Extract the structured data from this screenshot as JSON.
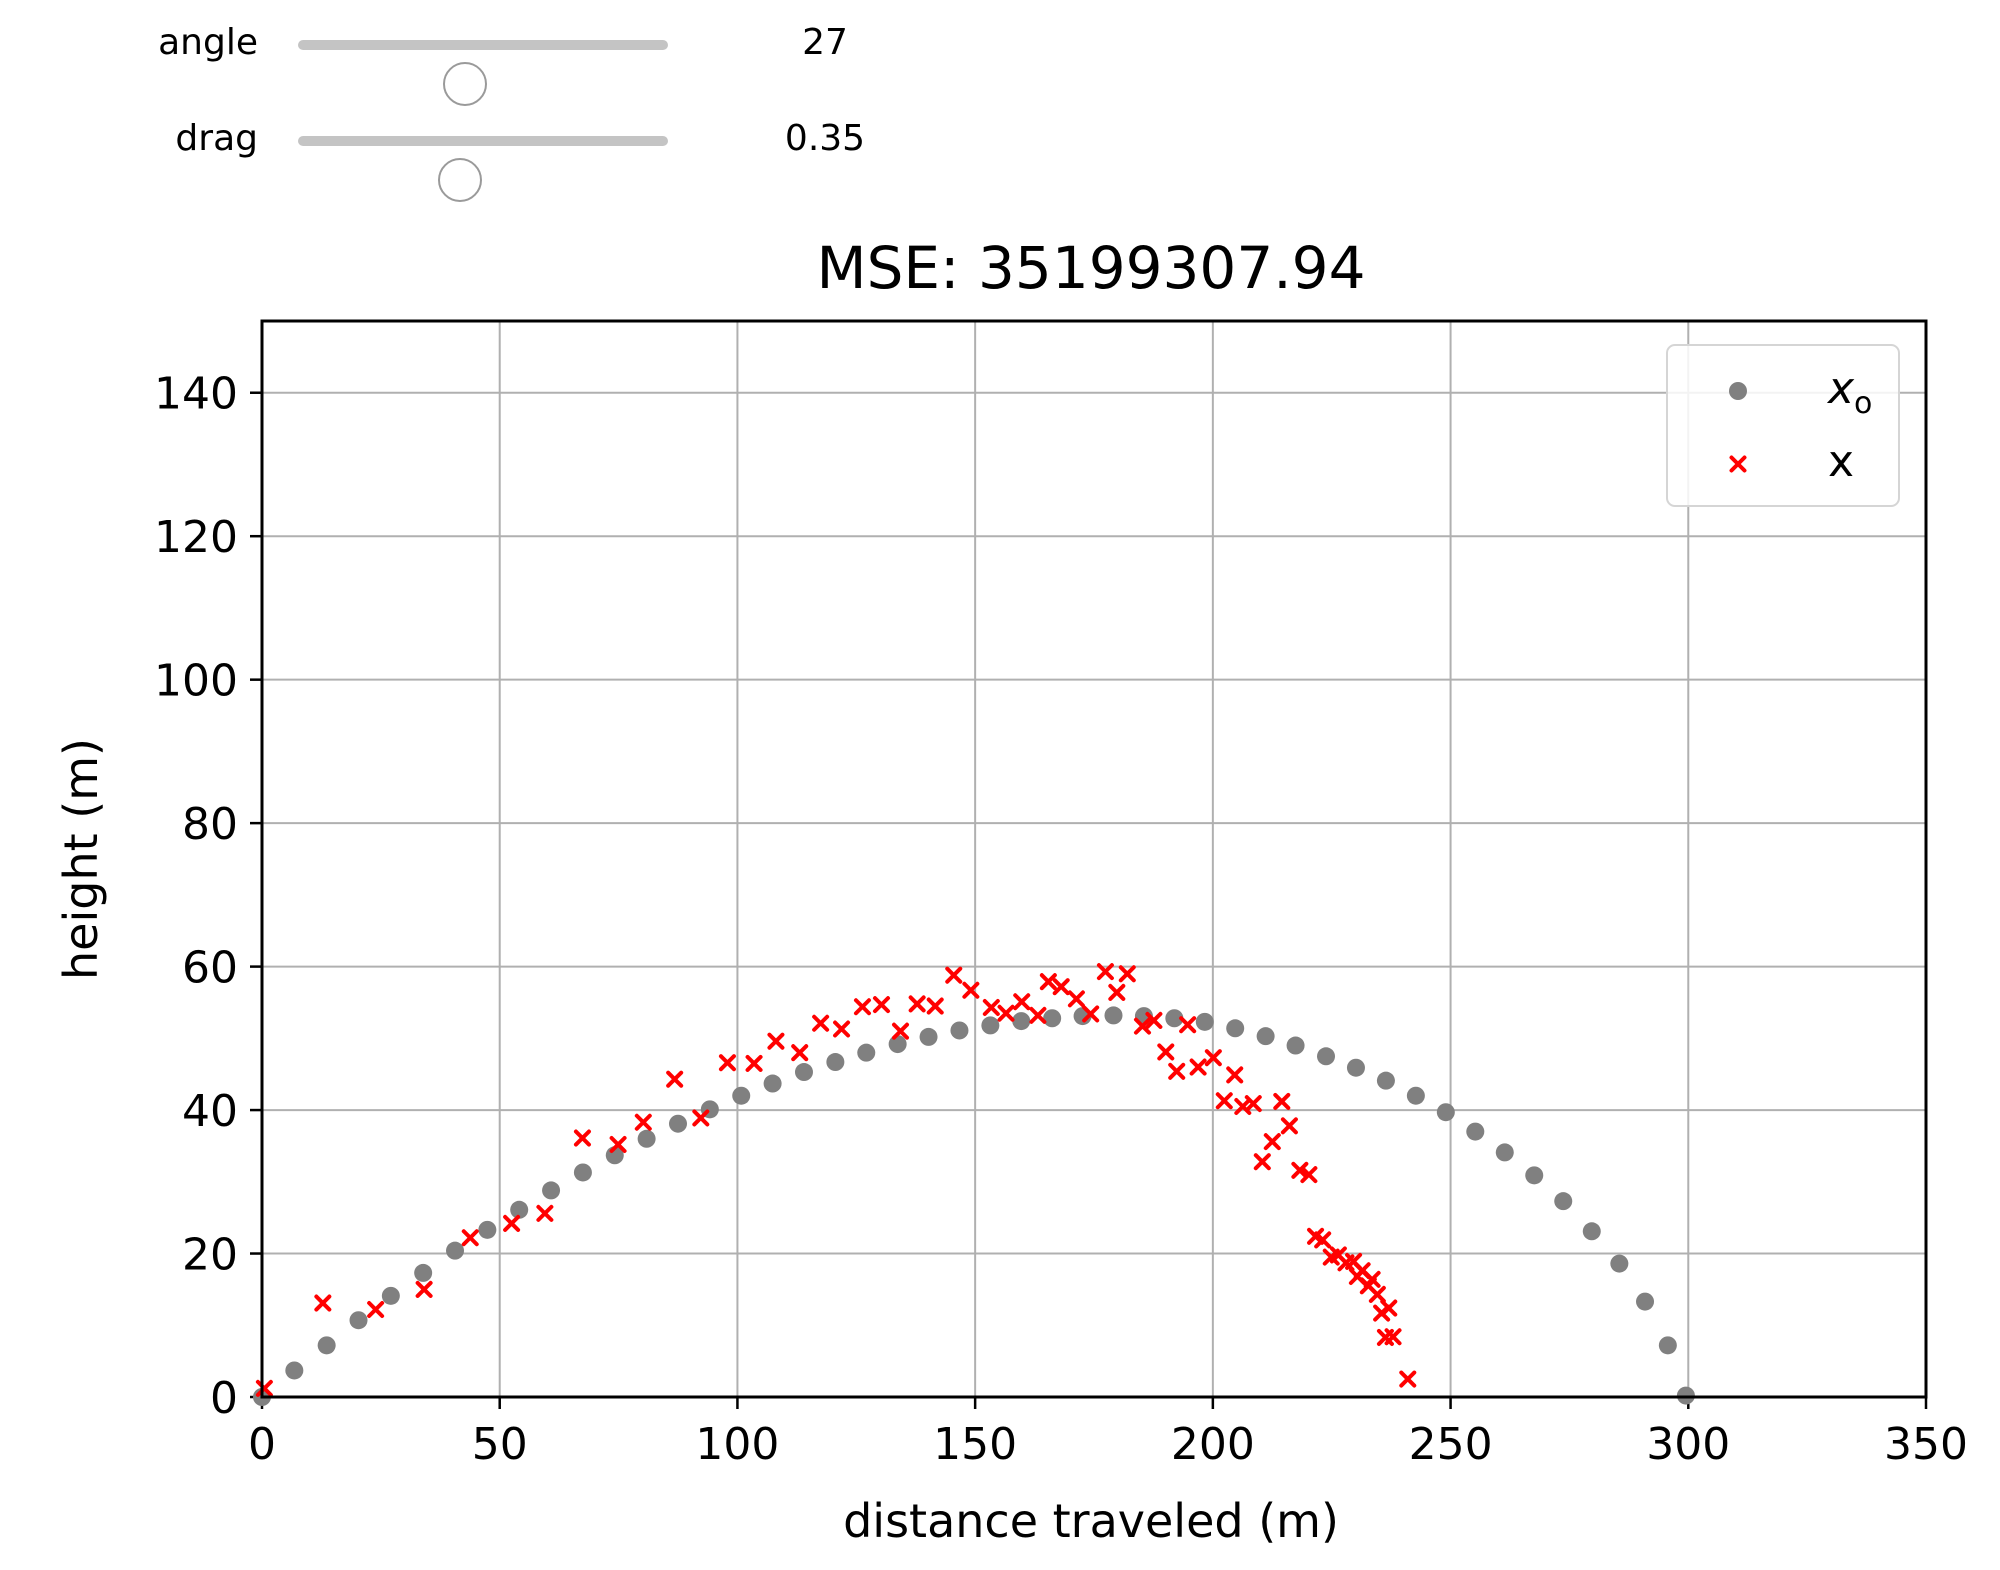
{
  "controls": {
    "angle": {
      "label": "angle",
      "value": 27,
      "display": "27",
      "min": 0,
      "max": 60
    },
    "drag": {
      "label": "drag",
      "value": 0.35,
      "display": "0.35",
      "min": 0,
      "max": 0.8
    }
  },
  "chart_data": {
    "type": "scatter",
    "title": "MSE: 35199307.94",
    "xlabel": "distance traveled (m)",
    "ylabel": "height (m)",
    "xlim": [
      0,
      350
    ],
    "ylim": [
      0,
      150
    ],
    "xticks": [
      0,
      50,
      100,
      150,
      200,
      250,
      300,
      350
    ],
    "yticks": [
      0,
      20,
      40,
      60,
      80,
      100,
      120,
      140
    ],
    "xtick_labels": [
      "0",
      "50",
      "100",
      "150",
      "200",
      "250",
      "300",
      "350"
    ],
    "ytick_labels": [
      "0",
      "20",
      "40",
      "60",
      "80",
      "100",
      "120",
      "140"
    ],
    "grid": true,
    "legend_position": "top-right",
    "colors": {
      "x_o": "#808080",
      "x": "#ff0000"
    },
    "series": [
      {
        "name": "x_o",
        "marker": "circle",
        "points": [
          [
            0,
            0
          ],
          [
            6.8,
            3.7
          ],
          [
            13.6,
            7.2
          ],
          [
            20.3,
            10.7
          ],
          [
            27.1,
            14.1
          ],
          [
            33.9,
            17.3
          ],
          [
            40.6,
            20.4
          ],
          [
            47.4,
            23.3
          ],
          [
            54.1,
            26.1
          ],
          [
            60.8,
            28.8
          ],
          [
            67.5,
            31.3
          ],
          [
            74.2,
            33.7
          ],
          [
            80.9,
            36.0
          ],
          [
            87.5,
            38.1
          ],
          [
            94.2,
            40.1
          ],
          [
            100.8,
            42.0
          ],
          [
            107.4,
            43.7
          ],
          [
            114.0,
            45.3
          ],
          [
            120.6,
            46.7
          ],
          [
            127.1,
            48.0
          ],
          [
            133.7,
            49.2
          ],
          [
            140.2,
            50.2
          ],
          [
            146.7,
            51.1
          ],
          [
            153.2,
            51.8
          ],
          [
            159.7,
            52.4
          ],
          [
            166.2,
            52.8
          ],
          [
            172.6,
            53.1
          ],
          [
            179.1,
            53.2
          ],
          [
            185.5,
            53.1
          ],
          [
            191.9,
            52.8
          ],
          [
            198.3,
            52.3
          ],
          [
            204.7,
            51.4
          ],
          [
            211.1,
            50.3
          ],
          [
            217.4,
            49.0
          ],
          [
            223.8,
            47.5
          ],
          [
            230.1,
            45.9
          ],
          [
            236.4,
            44.1
          ],
          [
            242.7,
            42.0
          ],
          [
            249.0,
            39.7
          ],
          [
            255.2,
            37.0
          ],
          [
            261.4,
            34.1
          ],
          [
            267.6,
            30.9
          ],
          [
            273.7,
            27.3
          ],
          [
            279.7,
            23.1
          ],
          [
            285.5,
            18.6
          ],
          [
            290.9,
            13.3
          ],
          [
            295.7,
            7.2
          ],
          [
            299.5,
            0.2
          ]
        ]
      },
      {
        "name": "x",
        "marker": "x",
        "points": [
          [
            0.5,
            1.2
          ],
          [
            12.8,
            13.1
          ],
          [
            23.9,
            12.2
          ],
          [
            34.1,
            15.0
          ],
          [
            43.8,
            22.2
          ],
          [
            52.5,
            24.2
          ],
          [
            59.5,
            25.6
          ],
          [
            67.4,
            36.1
          ],
          [
            74.9,
            35.2
          ],
          [
            80.2,
            38.3
          ],
          [
            86.8,
            44.3
          ],
          [
            92.3,
            38.9
          ],
          [
            97.9,
            46.6
          ],
          [
            103.5,
            46.5
          ],
          [
            108.1,
            49.6
          ],
          [
            113.1,
            48.0
          ],
          [
            117.5,
            52.1
          ],
          [
            121.9,
            51.3
          ],
          [
            126.3,
            54.4
          ],
          [
            130.3,
            54.7
          ],
          [
            134.3,
            51.0
          ],
          [
            137.8,
            54.8
          ],
          [
            141.6,
            54.5
          ],
          [
            145.5,
            58.8
          ],
          [
            149.1,
            56.7
          ],
          [
            153.4,
            54.3
          ],
          [
            156.5,
            53.5
          ],
          [
            159.8,
            55.1
          ],
          [
            163.2,
            53.2
          ],
          [
            165.4,
            57.9
          ],
          [
            168.1,
            57.2
          ],
          [
            171.3,
            55.5
          ],
          [
            174.3,
            53.4
          ],
          [
            177.4,
            59.3
          ],
          [
            179.8,
            56.4
          ],
          [
            182.0,
            59.0
          ],
          [
            185.2,
            51.7
          ],
          [
            187.6,
            52.5
          ],
          [
            190.1,
            48.1
          ],
          [
            192.4,
            45.4
          ],
          [
            194.7,
            51.9
          ],
          [
            196.9,
            46.0
          ],
          [
            200.1,
            47.3
          ],
          [
            202.4,
            41.3
          ],
          [
            204.6,
            44.9
          ],
          [
            206.3,
            40.5
          ],
          [
            208.5,
            40.9
          ],
          [
            210.4,
            32.8
          ],
          [
            212.5,
            35.6
          ],
          [
            214.5,
            41.2
          ],
          [
            216.1,
            37.8
          ],
          [
            218.3,
            31.6
          ],
          [
            220.2,
            31.0
          ],
          [
            221.6,
            22.4
          ],
          [
            223.1,
            21.9
          ],
          [
            224.9,
            19.5
          ],
          [
            226.4,
            19.8
          ],
          [
            228.0,
            18.7
          ],
          [
            229.6,
            18.9
          ],
          [
            230.4,
            16.8
          ],
          [
            231.4,
            17.6
          ],
          [
            232.7,
            15.5
          ],
          [
            233.5,
            16.4
          ],
          [
            234.6,
            14.3
          ],
          [
            235.5,
            11.7
          ],
          [
            236.3,
            8.3
          ],
          [
            237.0,
            12.4
          ],
          [
            237.9,
            8.4
          ],
          [
            241.0,
            2.5
          ]
        ]
      }
    ]
  }
}
